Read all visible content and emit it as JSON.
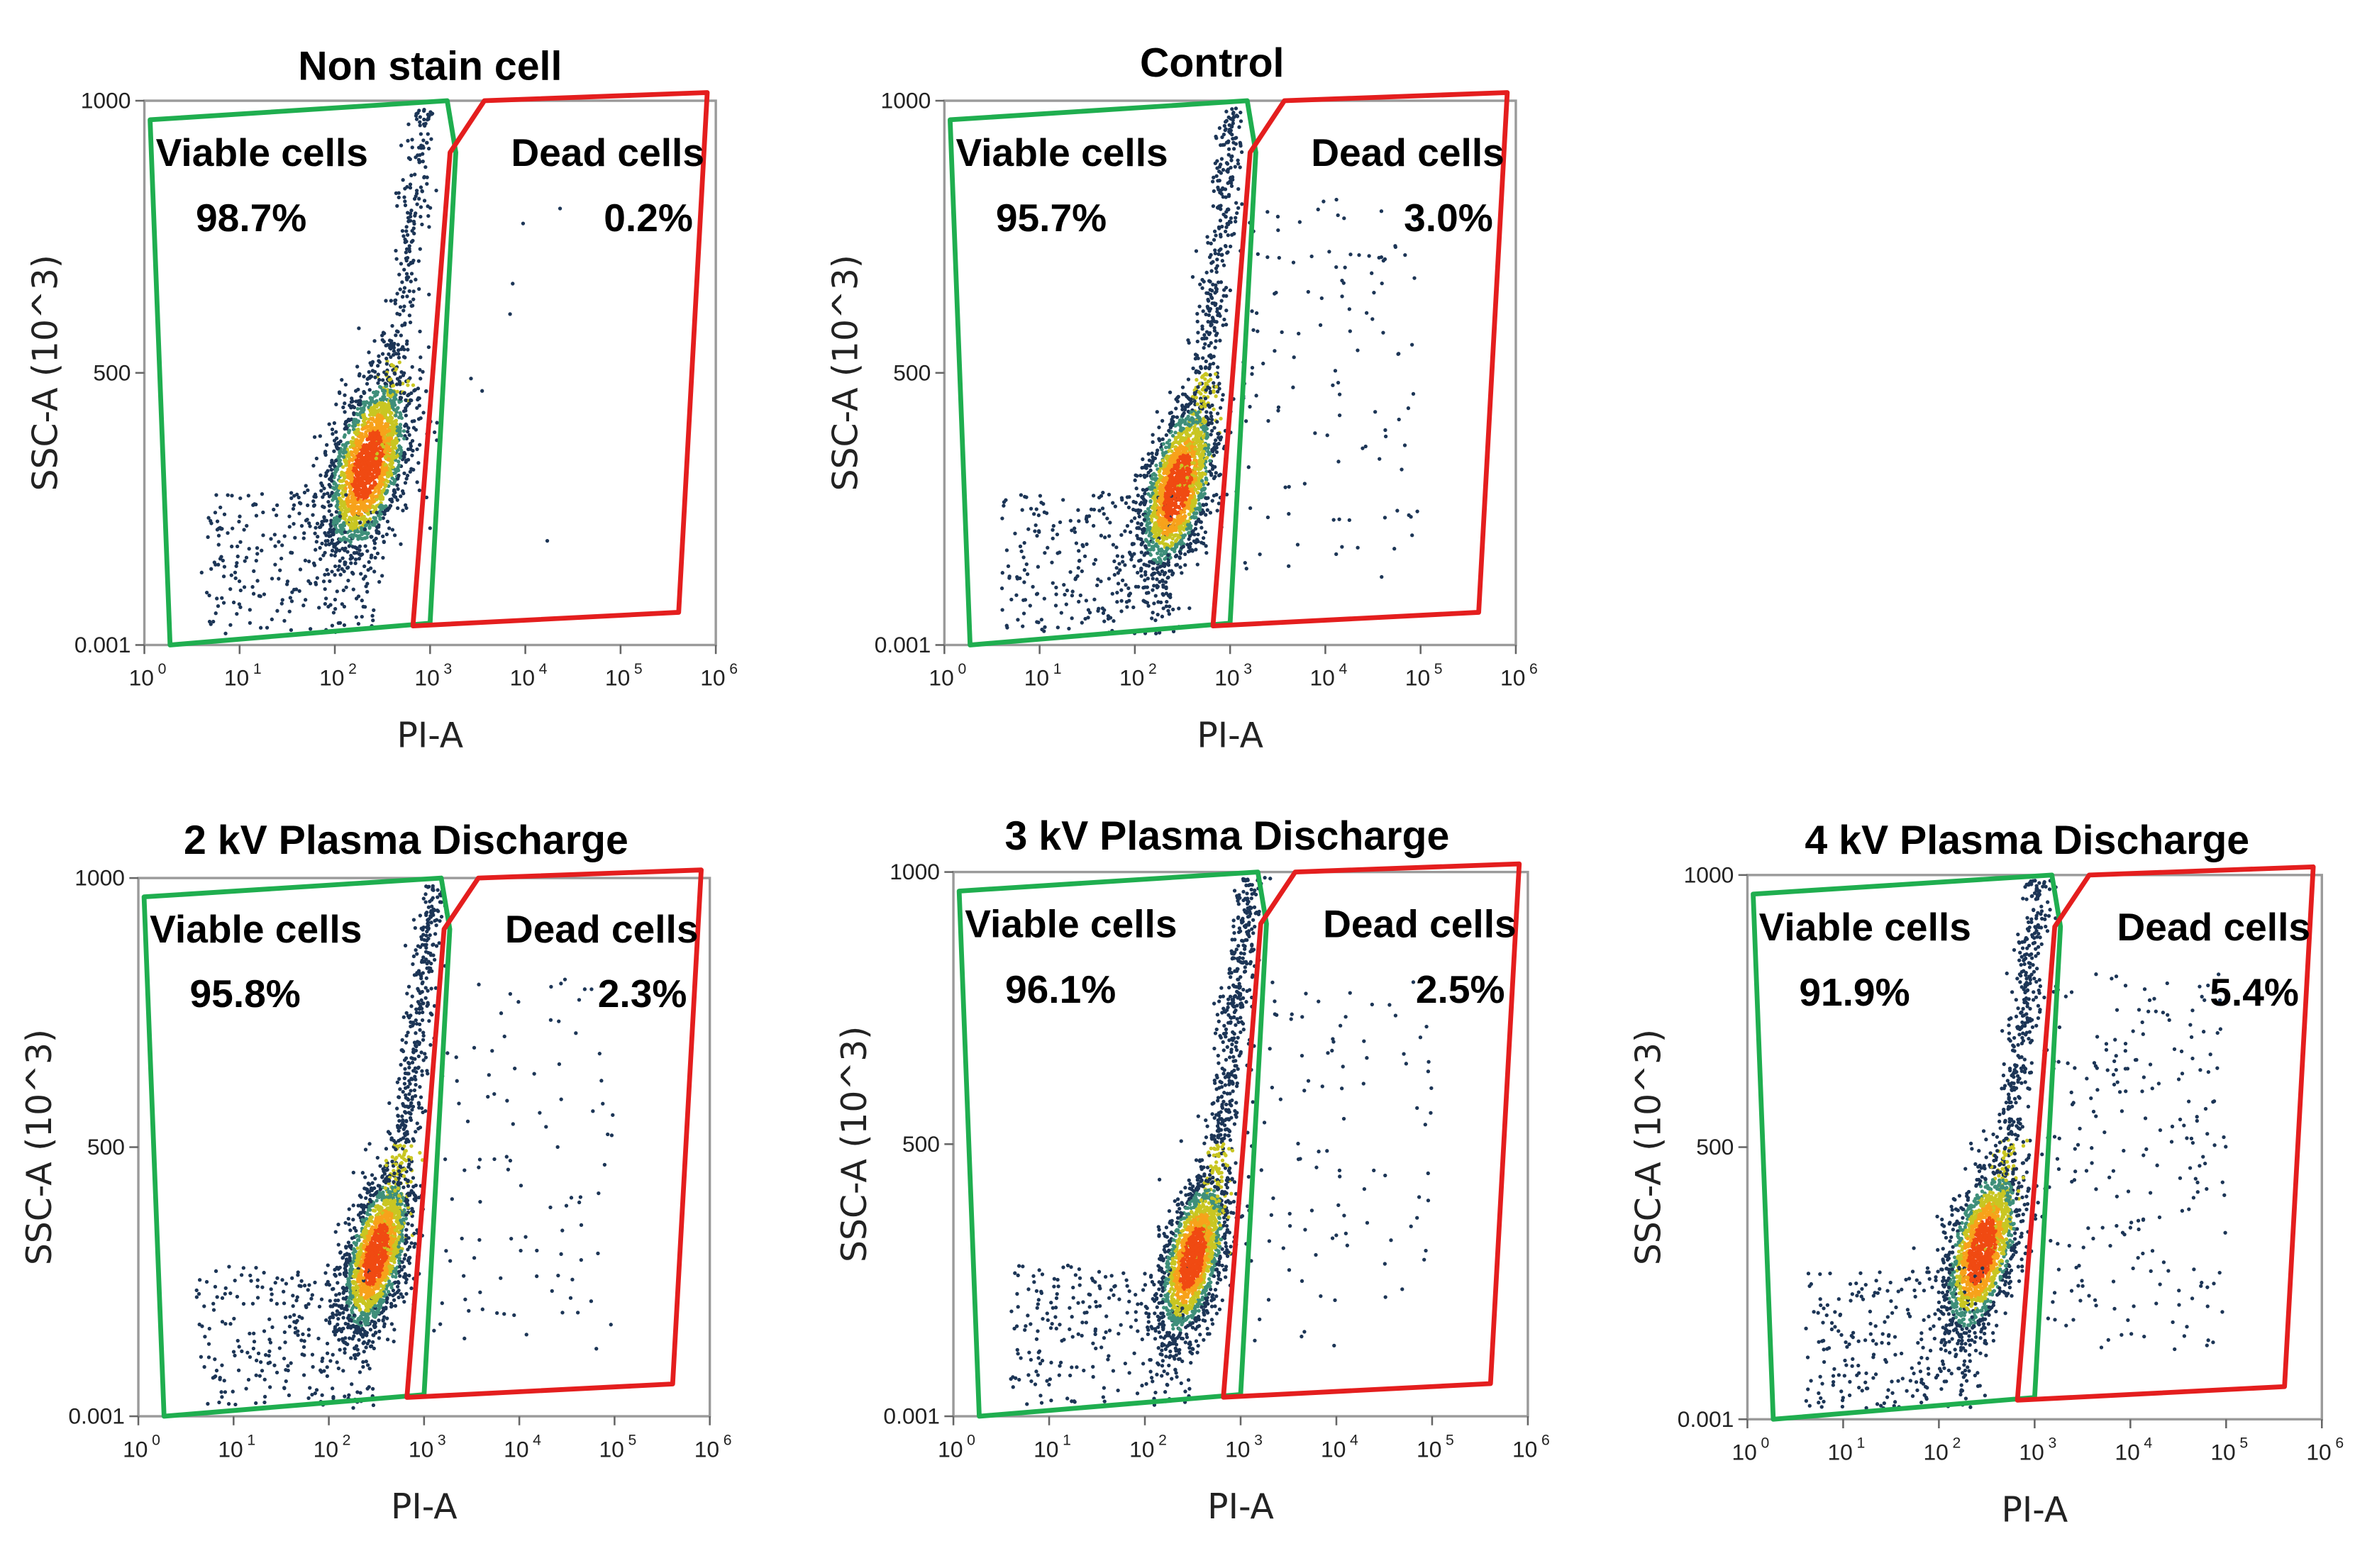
{
  "colors": {
    "viable_gate": "#1fae4f",
    "dead_gate": "#e41e1e",
    "axis": "#9a9a9a",
    "text": "#000000"
  },
  "chart_data": [
    {
      "type": "scatter",
      "title": "Non stain cell",
      "xlabel": "PI-A",
      "ylabel": "SSC-A (10^3)",
      "x_scale": "log",
      "xlim": [
        1,
        1000000
      ],
      "ylim": [
        0.001,
        1000
      ],
      "x_ticks": [
        "10",
        "10",
        "10",
        "10",
        "10",
        "10",
        "10"
      ],
      "x_tick_exponents": [
        "0",
        "1",
        "2",
        "3",
        "4",
        "5",
        "6"
      ],
      "y_ticks": [
        "0.001",
        "500",
        "1000"
      ],
      "gates": [
        {
          "name": "Viable cells",
          "percent": "98.7%",
          "color": "#1fae4f"
        },
        {
          "name": "Dead cells",
          "percent": "0.2%",
          "color": "#e41e1e"
        }
      ],
      "cluster": {
        "center_log_pi": 2.35,
        "center_ssc": 330,
        "log_pi_spread": 0.22,
        "ssc_spread": 75,
        "tail": 0.3,
        "dead_fraction": 0.002
      }
    },
    {
      "type": "scatter",
      "title": "Control",
      "xlabel": "PI-A",
      "ylabel": "SSC-A (10^3)",
      "x_scale": "log",
      "xlim": [
        1,
        1000000
      ],
      "ylim": [
        0.001,
        1000
      ],
      "x_ticks": [
        "10",
        "10",
        "10",
        "10",
        "10",
        "10",
        "10"
      ],
      "x_tick_exponents": [
        "0",
        "1",
        "2",
        "3",
        "4",
        "5",
        "6"
      ],
      "y_ticks": [
        "0.001",
        "500",
        "1000"
      ],
      "gates": [
        {
          "name": "Viable cells",
          "percent": "95.7%",
          "color": "#1fae4f"
        },
        {
          "name": "Dead cells",
          "percent": "3.0%",
          "color": "#e41e1e"
        }
      ],
      "cluster": {
        "center_log_pi": 2.45,
        "center_ssc": 290,
        "log_pi_spread": 0.2,
        "ssc_spread": 70,
        "tail": 0.45,
        "dead_fraction": 0.03
      }
    },
    {
      "type": "scatter",
      "title": "2 kV Plasma Discharge",
      "xlabel": "PI-A",
      "ylabel": "SSC-A (10^3)",
      "x_scale": "log",
      "xlim": [
        1,
        1000000
      ],
      "ylim": [
        0.001,
        1000
      ],
      "x_ticks": [
        "10",
        "10",
        "10",
        "10",
        "10",
        "10",
        "10"
      ],
      "x_tick_exponents": [
        "0",
        "1",
        "2",
        "3",
        "4",
        "5",
        "6"
      ],
      "y_ticks": [
        "0.001",
        "500",
        "1000"
      ],
      "gates": [
        {
          "name": "Viable cells",
          "percent": "95.8%",
          "color": "#1fae4f"
        },
        {
          "name": "Dead cells",
          "percent": "2.3%",
          "color": "#e41e1e"
        }
      ],
      "cluster": {
        "center_log_pi": 2.5,
        "center_ssc": 300,
        "log_pi_spread": 0.18,
        "ssc_spread": 65,
        "tail": 0.55,
        "dead_fraction": 0.023
      }
    },
    {
      "type": "scatter",
      "title": "3 kV Plasma Discharge",
      "xlabel": "PI-A",
      "ylabel": "SSC-A (10^3)",
      "x_scale": "log",
      "xlim": [
        1,
        1000000
      ],
      "ylim": [
        0.001,
        1000
      ],
      "x_ticks": [
        "10",
        "10",
        "10",
        "10",
        "10",
        "10",
        "10"
      ],
      "x_tick_exponents": [
        "0",
        "1",
        "2",
        "3",
        "4",
        "5",
        "6"
      ],
      "y_ticks": [
        "0.001",
        "500",
        "1000"
      ],
      "gates": [
        {
          "name": "Viable cells",
          "percent": "96.1%",
          "color": "#1fae4f"
        },
        {
          "name": "Dead cells",
          "percent": "2.5%",
          "color": "#e41e1e"
        }
      ],
      "cluster": {
        "center_log_pi": 2.5,
        "center_ssc": 290,
        "log_pi_spread": 0.18,
        "ssc_spread": 65,
        "tail": 0.55,
        "dead_fraction": 0.025
      }
    },
    {
      "type": "scatter",
      "title": "4 kV Plasma Discharge",
      "xlabel": "PI-A",
      "ylabel": "SSC-A (10^3)",
      "x_scale": "log",
      "xlim": [
        1,
        1000000
      ],
      "ylim": [
        0.001,
        1000
      ],
      "x_ticks": [
        "10",
        "10",
        "10",
        "10",
        "10",
        "10",
        "10"
      ],
      "x_tick_exponents": [
        "0",
        "1",
        "2",
        "3",
        "4",
        "5",
        "6"
      ],
      "y_ticks": [
        "0.001",
        "500",
        "1000"
      ],
      "gates": [
        {
          "name": "Viable cells",
          "percent": "91.9%",
          "color": "#1fae4f"
        },
        {
          "name": "Dead cells",
          "percent": "5.4%",
          "color": "#e41e1e"
        }
      ],
      "cluster": {
        "center_log_pi": 2.45,
        "center_ssc": 310,
        "log_pi_spread": 0.2,
        "ssc_spread": 70,
        "tail": 0.45,
        "dead_fraction": 0.054
      }
    }
  ]
}
